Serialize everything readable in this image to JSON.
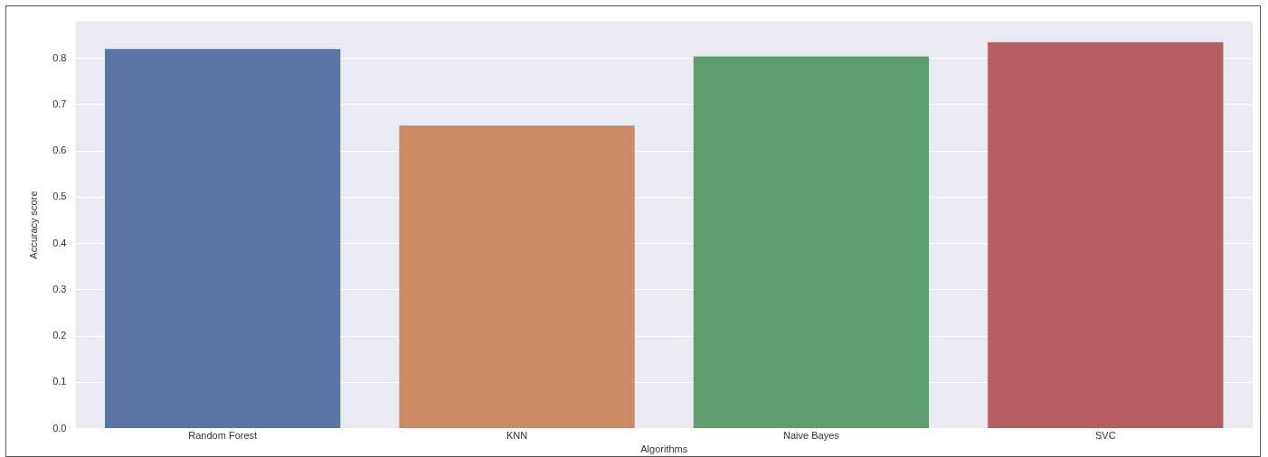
{
  "chart_data": {
    "type": "bar",
    "xlabel": "Algorithms",
    "ylabel": "Accuracy score",
    "categories": [
      "Random Forest",
      "KNN",
      "Naive Bayes",
      "SVC"
    ],
    "values": [
      0.82,
      0.655,
      0.804,
      0.835
    ],
    "colors": [
      "#5875a4",
      "#cc8963",
      "#5f9e6e",
      "#b55d60"
    ],
    "ylim": [
      0,
      0.88
    ],
    "yticks": [
      {
        "value": 0,
        "label": "0.0"
      },
      {
        "value": 0.1,
        "label": "0.1"
      },
      {
        "value": 0.2,
        "label": "0.2"
      },
      {
        "value": 0.3,
        "label": "0.3"
      },
      {
        "value": 0.4,
        "label": "0.4"
      },
      {
        "value": 0.5,
        "label": "0.5"
      },
      {
        "value": 0.6,
        "label": "0.6"
      },
      {
        "value": 0.7,
        "label": "0.7"
      },
      {
        "value": 0.8,
        "label": "0.8"
      }
    ],
    "grid": "y"
  }
}
